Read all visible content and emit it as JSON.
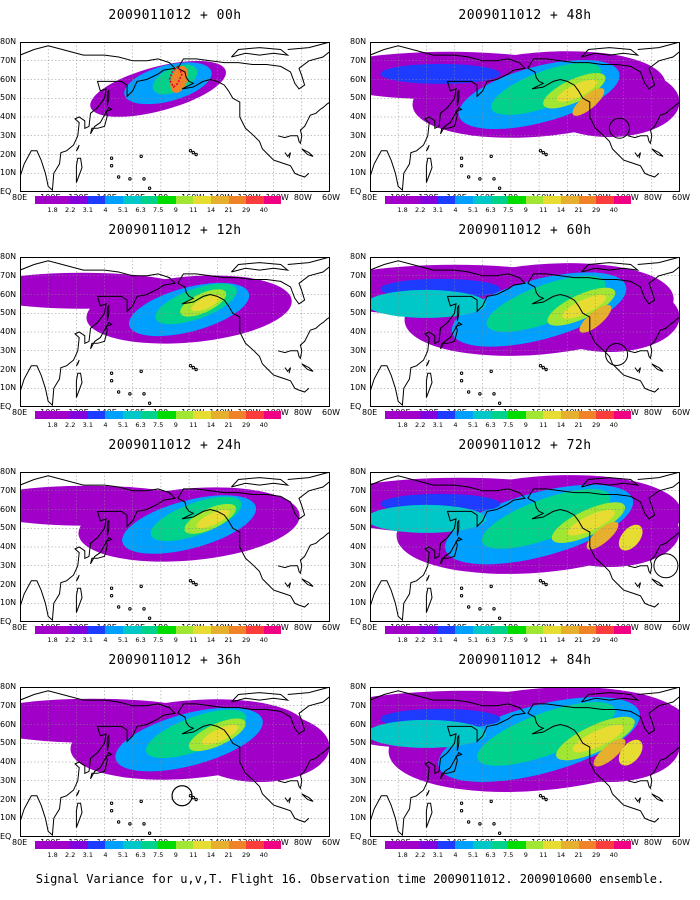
{
  "caption": "Signal Variance for u,v,T. Flight 16. Observation time 2009011012. 2009010600 ensemble.",
  "panels": [
    {
      "title": "2009011012 + 00h",
      "level": 0
    },
    {
      "title": "2009011012 + 48h",
      "level": 4
    },
    {
      "title": "2009011012 + 12h",
      "level": 1
    },
    {
      "title": "2009011012 + 60h",
      "level": 5
    },
    {
      "title": "2009011012 + 24h",
      "level": 2
    },
    {
      "title": "2009011012 + 72h",
      "level": 6
    },
    {
      "title": "2009011012 + 36h",
      "level": 3
    },
    {
      "title": "2009011012 + 84h",
      "level": 7
    }
  ],
  "x_tick_labels": [
    "80E",
    "100E",
    "120E",
    "140E",
    "160E",
    "180",
    "160W",
    "140W",
    "120W",
    "100W",
    "80W",
    "60W"
  ],
  "y_tick_labels": [
    "80N",
    "70N",
    "60N",
    "50N",
    "40N",
    "30N",
    "20N",
    "10N",
    "EQ"
  ],
  "colorbar": {
    "labels": [
      "1.8",
      "2.2",
      "3.1",
      "4",
      "5.1",
      "6.3",
      "7.5",
      "9",
      "11",
      "14",
      "21",
      "29",
      "40"
    ],
    "colors": [
      "#a000c8",
      "#8200dc",
      "#1e3cff",
      "#00a0ff",
      "#00c8c8",
      "#00d28c",
      "#00dc00",
      "#a0e632",
      "#e6dc32",
      "#e6af2d",
      "#f08228",
      "#fa3c3c",
      "#f00082"
    ]
  }
}
